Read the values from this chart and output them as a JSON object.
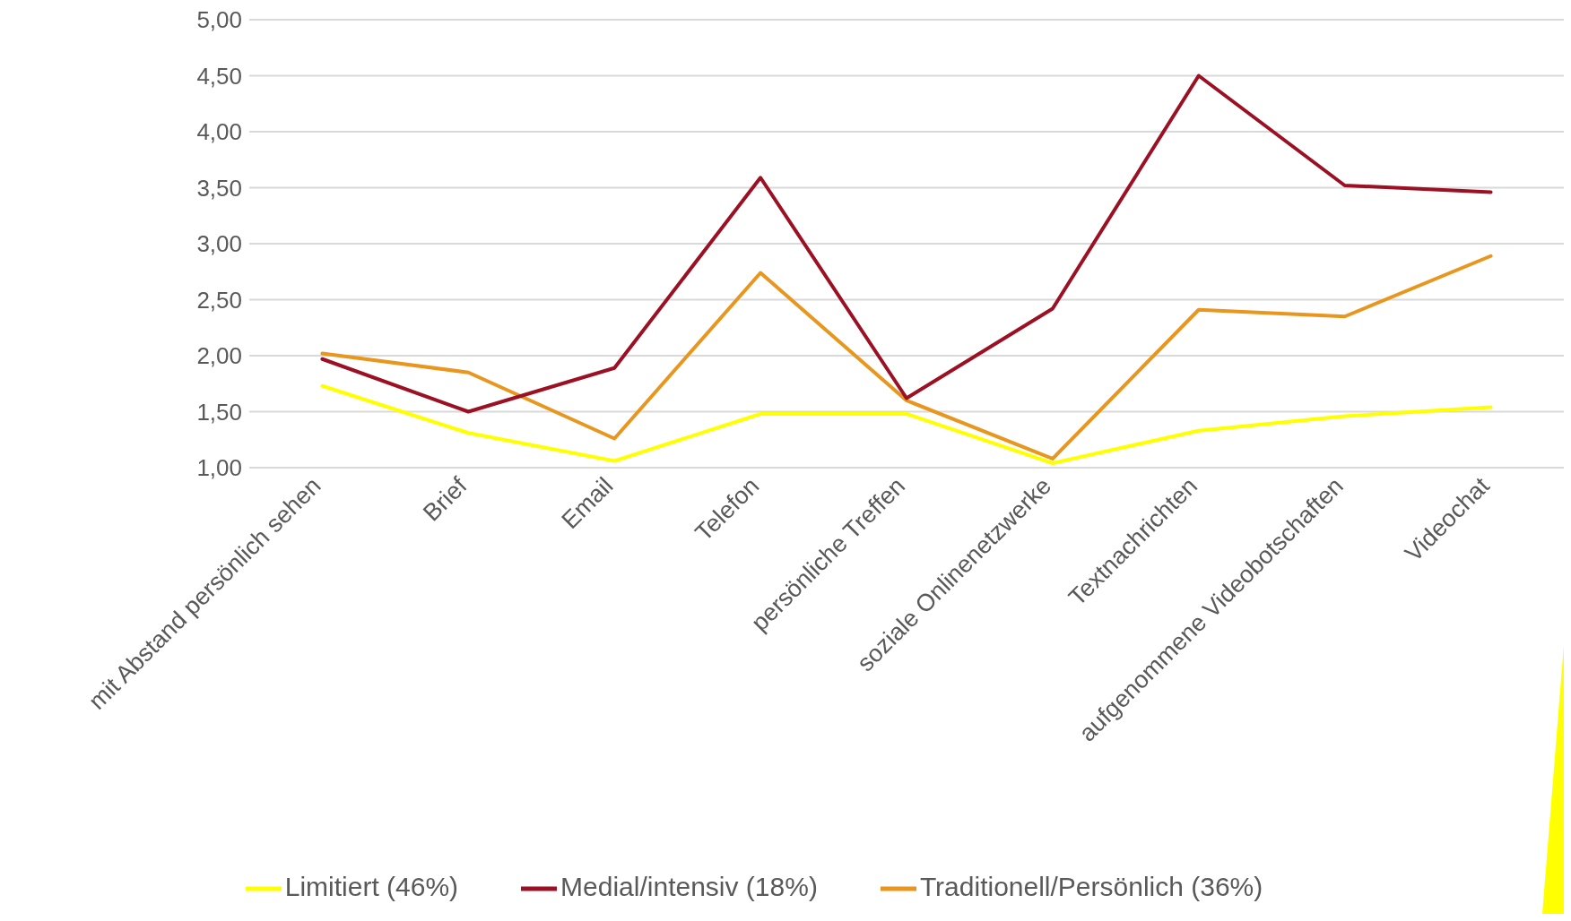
{
  "chart_data": {
    "type": "line",
    "categories": [
      "mit Abstand persönlich sehen",
      "Brief",
      "Email",
      "Telefon",
      "persönliche Treffen",
      "soziale Onlinenetzwerke",
      "Textnachrichten",
      "aufgenommene Videobotschaften",
      "Videochat"
    ],
    "series": [
      {
        "name": "Traditionell/Persönlich (36%)",
        "color": "#e8961e",
        "values": [
          2.02,
          1.85,
          1.26,
          2.74,
          1.6,
          1.08,
          2.41,
          2.35,
          2.89
        ]
      },
      {
        "name": "Limitiert (46%)",
        "color": "#ffff00",
        "values": [
          1.73,
          1.31,
          1.06,
          1.48,
          1.48,
          1.04,
          1.33,
          1.46,
          1.54
        ]
      },
      {
        "name": "Medial/intensiv (18%)",
        "color": "#9b1022",
        "values": [
          1.97,
          1.5,
          1.89,
          3.59,
          1.62,
          2.42,
          4.5,
          3.52,
          3.46
        ]
      }
    ],
    "ylim": [
      1,
      5
    ],
    "yticks": [
      {
        "value": 1,
        "label": "1,00"
      },
      {
        "value": 1.5,
        "label": "1,50"
      },
      {
        "value": 2,
        "label": "2,00"
      },
      {
        "value": 2.5,
        "label": "2,50"
      },
      {
        "value": 3,
        "label": "3,00"
      },
      {
        "value": 3.5,
        "label": "3,50"
      },
      {
        "value": 4,
        "label": "4,00"
      },
      {
        "value": 4.5,
        "label": "4,50"
      },
      {
        "value": 5,
        "label": "5,00"
      }
    ],
    "grid": "y",
    "legend": "bottom",
    "marker": "none",
    "line_style": "solid"
  }
}
